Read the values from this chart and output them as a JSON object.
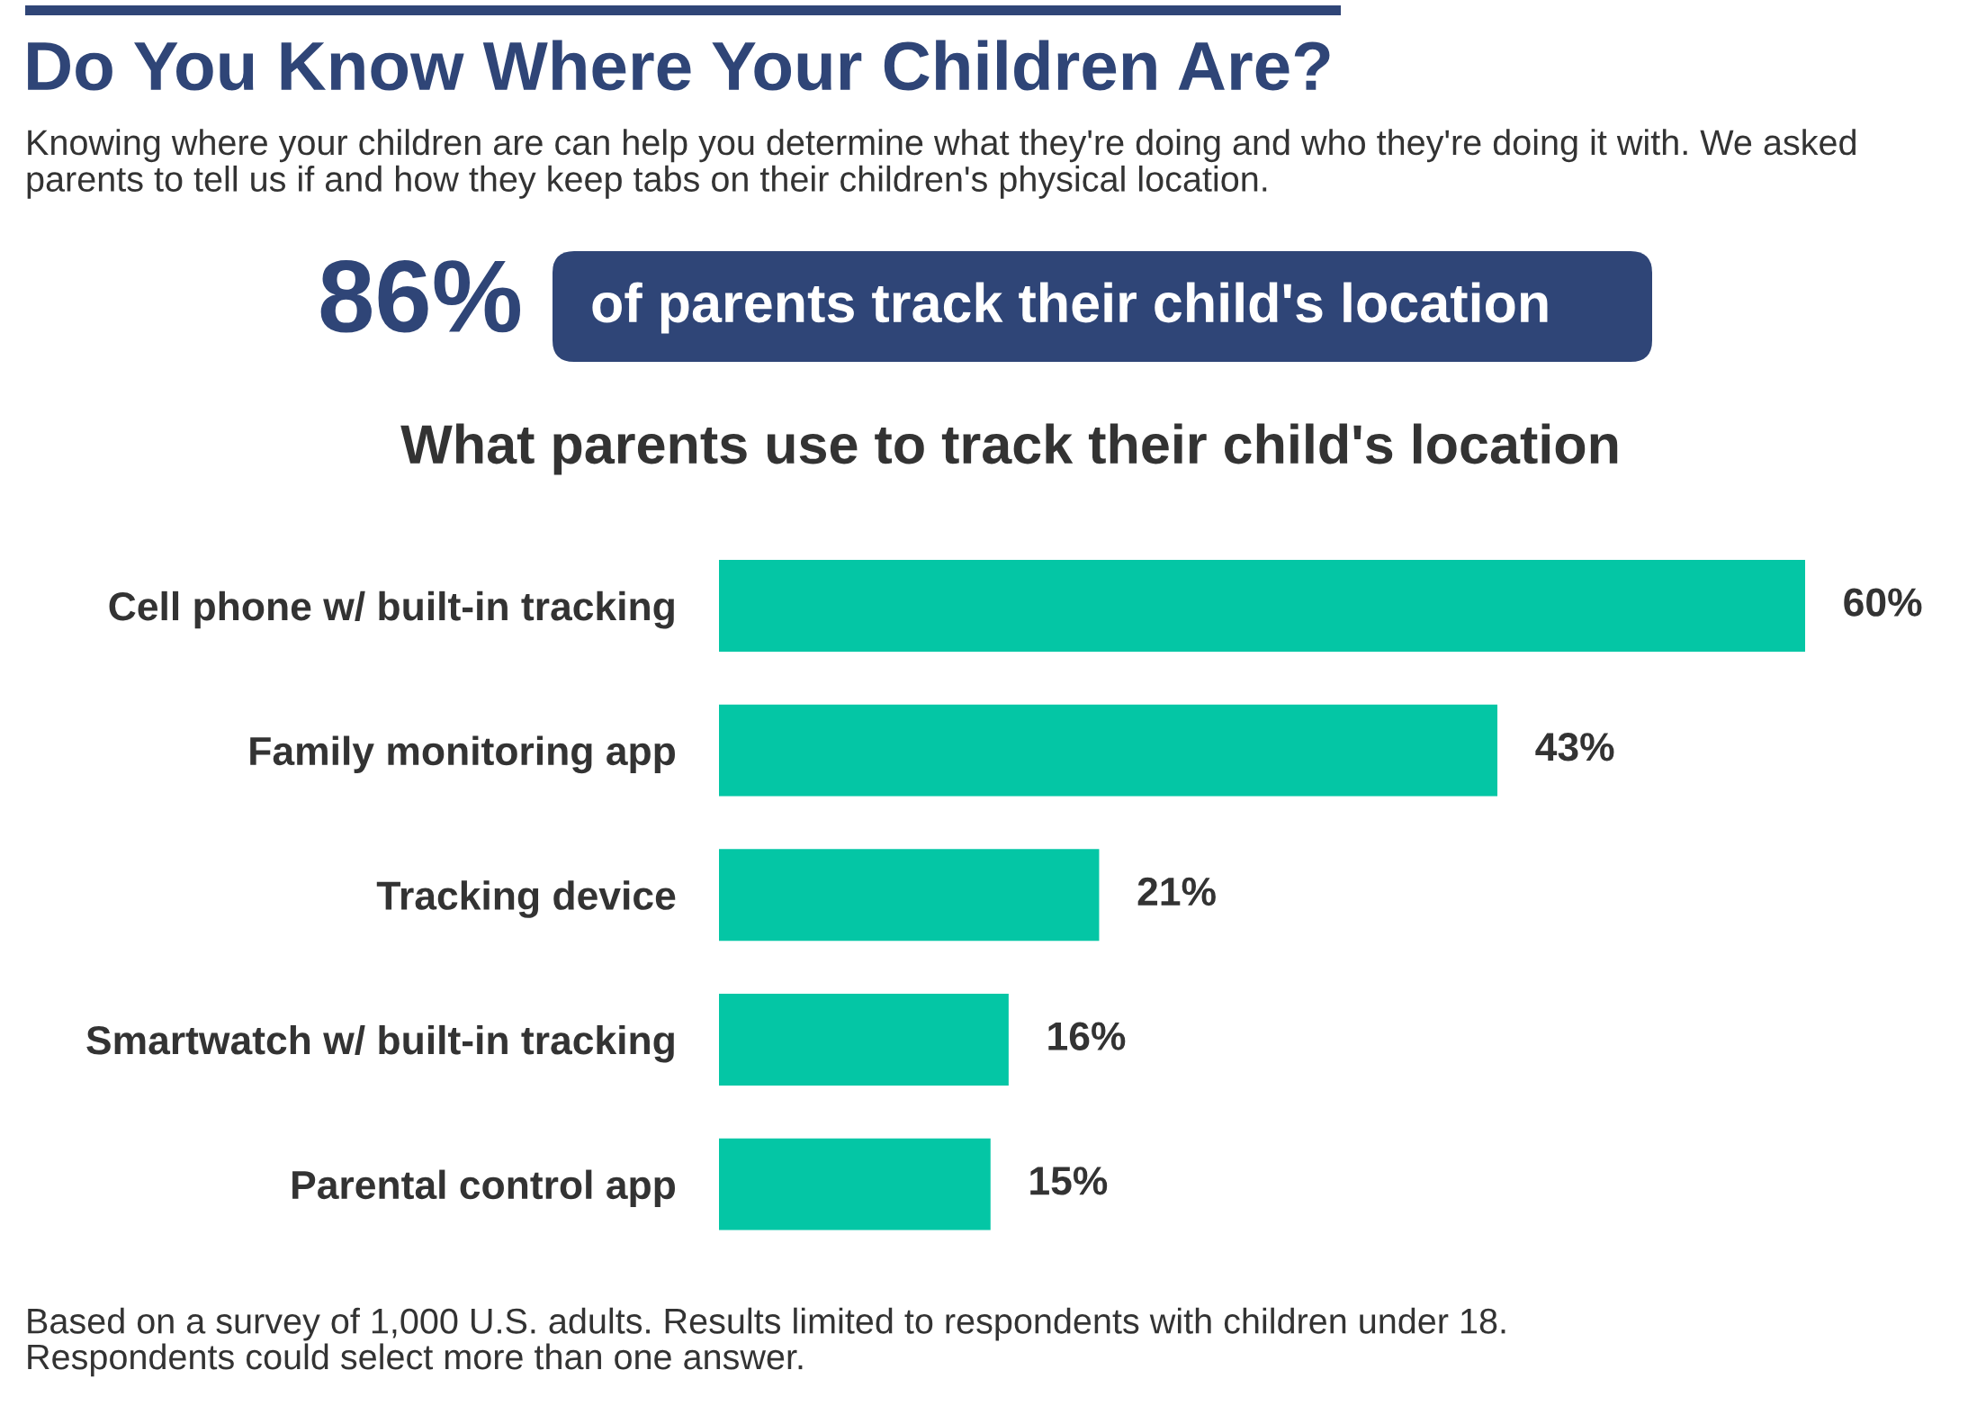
{
  "chart_data": {
    "type": "bar",
    "orientation": "horizontal",
    "title": "Do You Know Where Your Children Are?",
    "subtitle": "Knowing where your children are can help you determine what they're doing and who they're doing it with. We asked\nparents to tell us if and how they keep tabs on their children's physical location.",
    "categories": [
      "Cell phone w/ built-in tracking",
      "Family monitoring app",
      "Tracking device",
      "Smartwatch w/ built-in tracking",
      "Parental control app"
    ],
    "values": [
      60,
      43,
      21,
      16,
      15
    ],
    "color": "#04c6a5",
    "value_labels": [
      "60%",
      "43%",
      "21%",
      "16%",
      "15%"
    ],
    "tick_labels": "y",
    "annotations": [
      "86%",
      "of parents track their child's location",
      "What parents use to track their child's location",
      "Based on a survey of 1,000 U.S. adults. Results limited to respondents with children under 18.\nRespondents could select more than one answer."
    ]
  }
}
